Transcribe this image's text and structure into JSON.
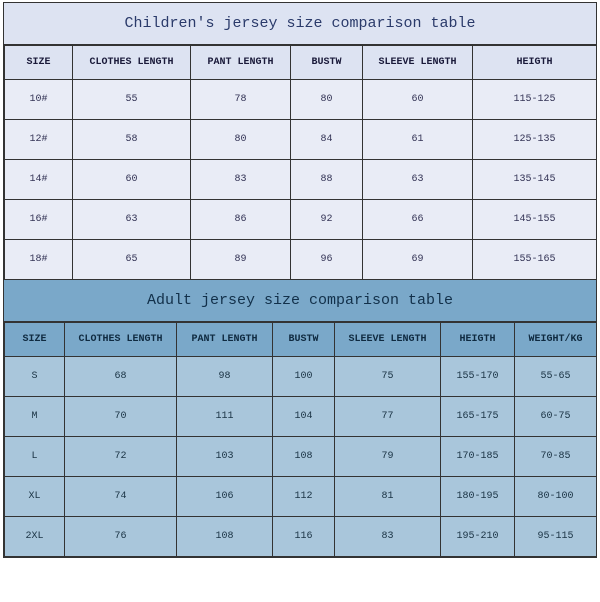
{
  "children": {
    "title": "Children's jersey size comparison table",
    "columns": [
      "SIZE",
      "CLOTHES LENGTH",
      "PANT LENGTH",
      "BUSTW",
      "SLEEVE LENGTH",
      "HEIGTH"
    ],
    "rows": [
      [
        "10#",
        "55",
        "78",
        "80",
        "60",
        "115-125"
      ],
      [
        "12#",
        "58",
        "80",
        "84",
        "61",
        "125-135"
      ],
      [
        "14#",
        "60",
        "83",
        "88",
        "63",
        "135-145"
      ],
      [
        "16#",
        "63",
        "86",
        "92",
        "66",
        "145-155"
      ],
      [
        "18#",
        "65",
        "89",
        "96",
        "69",
        "155-165"
      ]
    ],
    "title_bg": "#dde3f2",
    "header_bg": "#dde3f2",
    "cell_bg": "#e9ecf6",
    "border_color": "#333333",
    "title_fontsize": 15,
    "header_fontsize": 10,
    "cell_fontsize": 10
  },
  "adult": {
    "title": "Adult jersey size comparison table",
    "columns": [
      "SIZE",
      "CLOTHES LENGTH",
      "PANT LENGTH",
      "BUSTW",
      "SLEEVE LENGTH",
      "HEIGTH",
      "WEIGHT/KG"
    ],
    "rows": [
      [
        "S",
        "68",
        "98",
        "100",
        "75",
        "155-170",
        "55-65"
      ],
      [
        "M",
        "70",
        "111",
        "104",
        "77",
        "165-175",
        "60-75"
      ],
      [
        "L",
        "72",
        "103",
        "108",
        "79",
        "170-185",
        "70-85"
      ],
      [
        "XL",
        "74",
        "106",
        "112",
        "81",
        "180-195",
        "80-100"
      ],
      [
        "2XL",
        "76",
        "108",
        "116",
        "83",
        "195-210",
        "95-115"
      ]
    ],
    "title_bg": "#7aa8c9",
    "header_bg": "#7aa8c9",
    "cell_bg": "#a9c6db",
    "border_color": "#333333",
    "title_fontsize": 15,
    "header_fontsize": 10,
    "cell_fontsize": 10
  }
}
